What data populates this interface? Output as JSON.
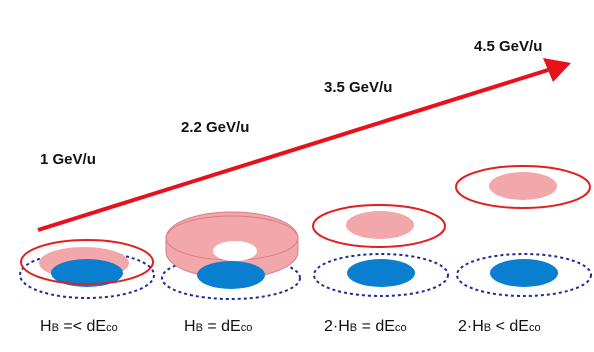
{
  "energy_labels": [
    "1 GeV/u",
    "2.2 GeV/u",
    "3.5 GeV/u",
    "4.5 GeV/u"
  ],
  "conditions": [
    {
      "a": "H",
      "a_sub": "B",
      "rel": " =< dE",
      "b_sub": "co"
    },
    {
      "a": "H",
      "a_sub": "B",
      "rel": " = dE",
      "b_sub": "co"
    },
    {
      "a": "2·H",
      "a_sub": "B",
      "rel": " = dE",
      "b_sub": "co"
    },
    {
      "a": "2·H",
      "a_sub": "B",
      "rel": " < dE",
      "b_sub": "co"
    }
  ],
  "colors": {
    "arrow": "#e8101a",
    "pink": "#f2a7aa",
    "blue": "#0a7fd0",
    "outline_red": "#e02020",
    "outline_blue": "#1f2a9a"
  }
}
